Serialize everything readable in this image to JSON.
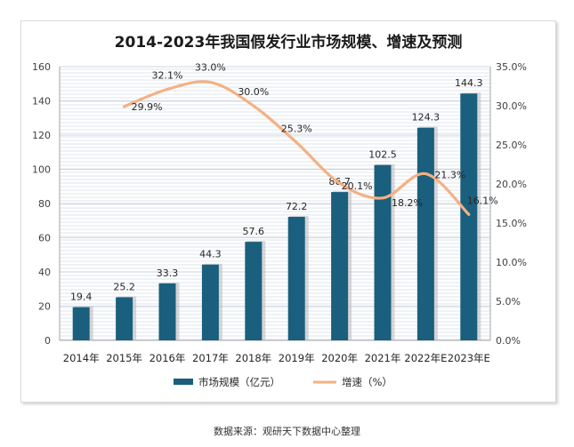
{
  "chart_data": {
    "type": "bar",
    "title": "2014-2023年我国假发行业市场规模、增速及预测",
    "categories": [
      "2014年",
      "2015年",
      "2016年",
      "2017年",
      "2018年",
      "2019年",
      "2020年",
      "2021年",
      "2022年E",
      "2023年E"
    ],
    "series": [
      {
        "name": "市场规模（亿元）",
        "type": "bar",
        "axis": "left",
        "values": [
          19.4,
          25.2,
          33.3,
          44.3,
          57.6,
          72.2,
          86.7,
          102.5,
          124.3,
          144.3
        ],
        "labels": [
          "19.4",
          "25.2",
          "33.3",
          "44.3",
          "57.6",
          "72.2",
          "86.7",
          "102.5",
          "124.3",
          "144.3"
        ]
      },
      {
        "name": "增速（%）",
        "type": "line",
        "axis": "right",
        "smooth": true,
        "values": [
          null,
          29.9,
          32.1,
          33.0,
          30.0,
          25.3,
          20.1,
          18.2,
          21.3,
          16.1
        ],
        "labels": [
          null,
          "29.9%",
          "32.1%",
          "33.0%",
          "30.0%",
          "25.3%",
          "20.1%",
          "18.2%",
          "21.3%",
          "16.1%"
        ]
      }
    ],
    "ylim": [
      0,
      160
    ],
    "yticks": [
      "0",
      "20",
      "40",
      "60",
      "80",
      "100",
      "120",
      "140",
      "160"
    ],
    "y2lim": [
      0,
      35
    ],
    "y2ticks": [
      "0.0%",
      "5.0%",
      "10.0%",
      "15.0%",
      "20.0%",
      "25.0%",
      "30.0%",
      "35.0%"
    ],
    "grid": true,
    "legend_position": "bottom",
    "colors": {
      "bar": "#1b5f7e",
      "line": "#f4b183",
      "grid": "#c0c8d8"
    }
  },
  "source": "数据来源：观研天下数据中心整理"
}
